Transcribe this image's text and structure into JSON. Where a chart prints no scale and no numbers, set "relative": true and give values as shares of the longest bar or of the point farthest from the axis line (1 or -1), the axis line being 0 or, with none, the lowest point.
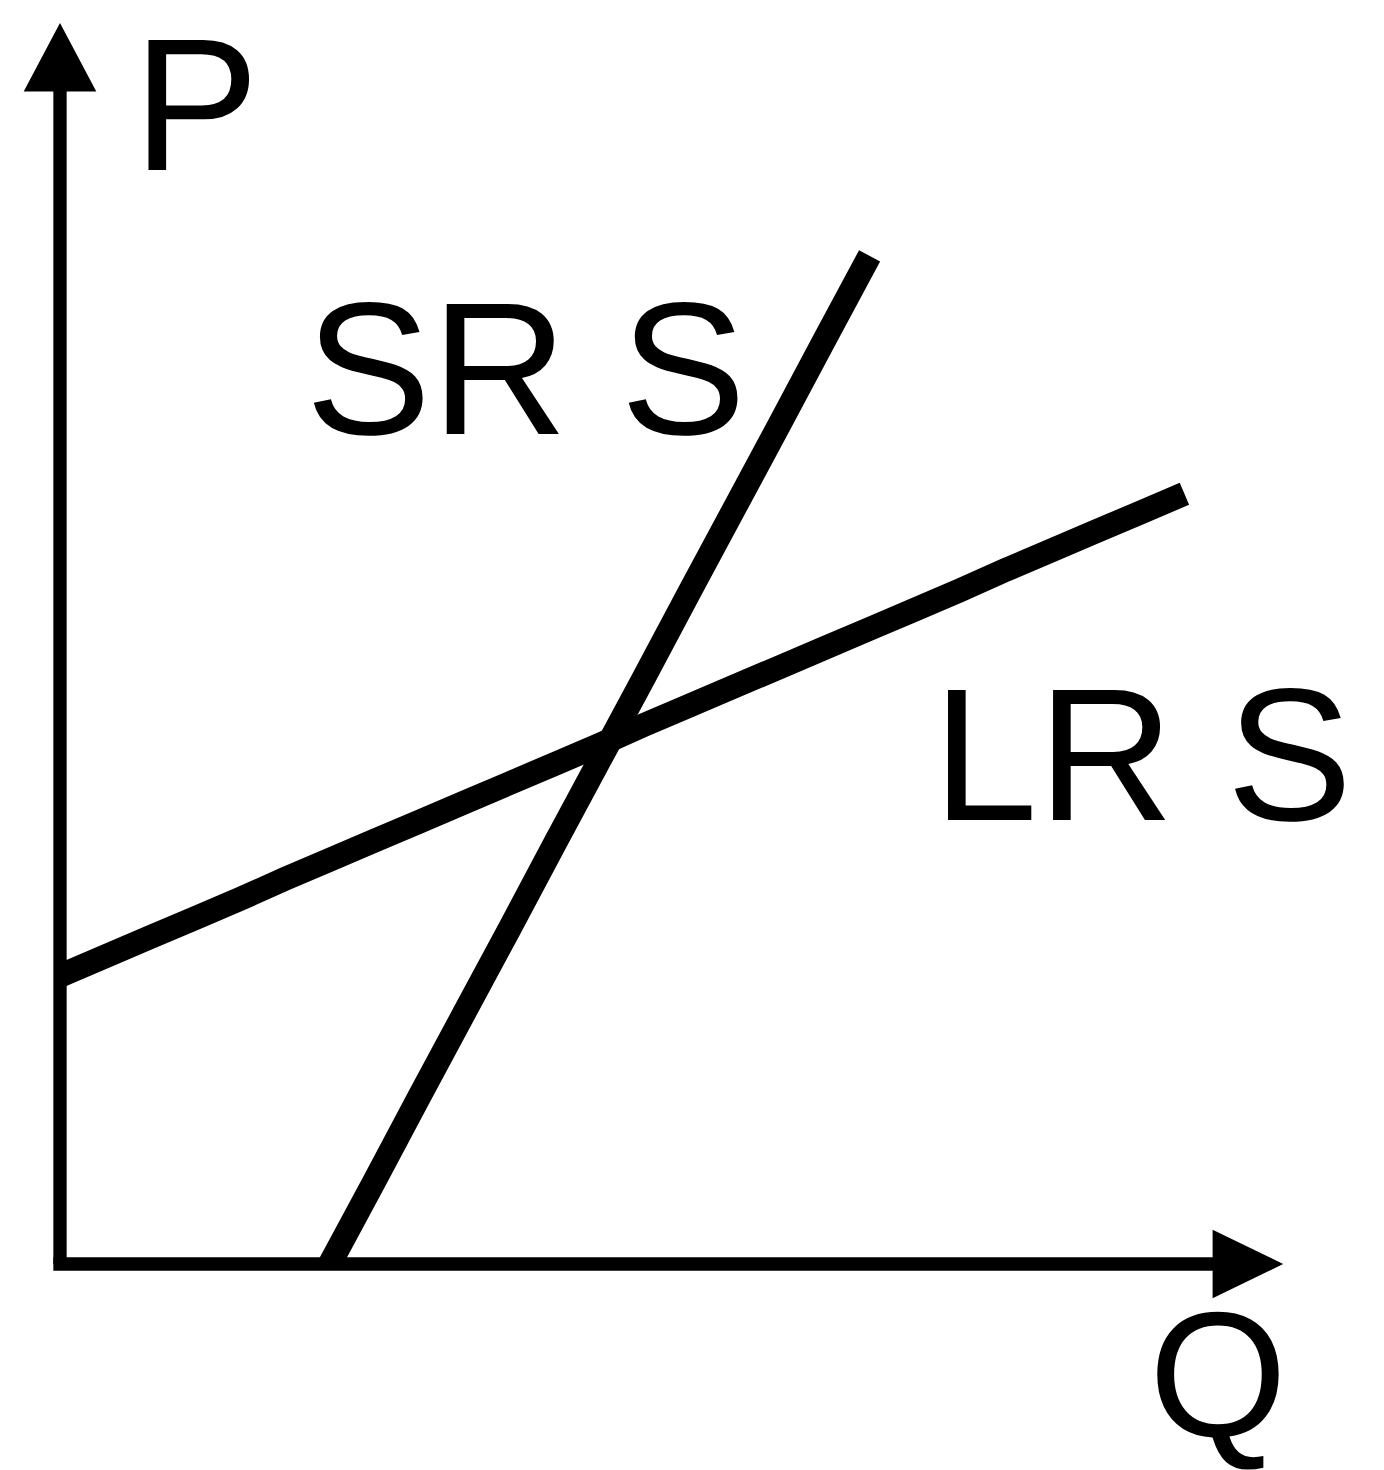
{
  "chart_data": {
    "type": "line",
    "xlabel": "Q",
    "ylabel": "P",
    "relative": true,
    "categories": [
      null,
      null,
      null,
      null,
      null,
      null,
      null,
      null,
      null,
      null,
      null,
      null,
      null,
      null,
      null,
      null,
      null,
      null,
      null,
      null,
      null,
      null,
      null,
      null,
      null,
      null
    ],
    "series": [
      {
        "name": "SR S",
        "color": "#000000",
        "values": [
          null,
          null,
          null,
          null,
          null,
          null,
          0,
          0.083,
          0.167,
          0.25,
          0.333,
          0.417,
          0.5,
          0.583,
          0.667,
          0.75,
          0.833,
          0.917,
          1,
          null,
          null,
          null,
          null,
          null,
          null,
          null
        ]
      },
      {
        "name": "LR S",
        "color": "#000000",
        "values": [
          0.286,
          0.305,
          0.324,
          0.343,
          0.362,
          0.382,
          0.401,
          0.42,
          0.439,
          0.458,
          0.477,
          0.496,
          0.515,
          0.535,
          0.554,
          0.573,
          0.592,
          0.611,
          0.63,
          0.649,
          0.668,
          0.688,
          0.707,
          0.726,
          0.745,
          0.764
        ]
      }
    ]
  }
}
